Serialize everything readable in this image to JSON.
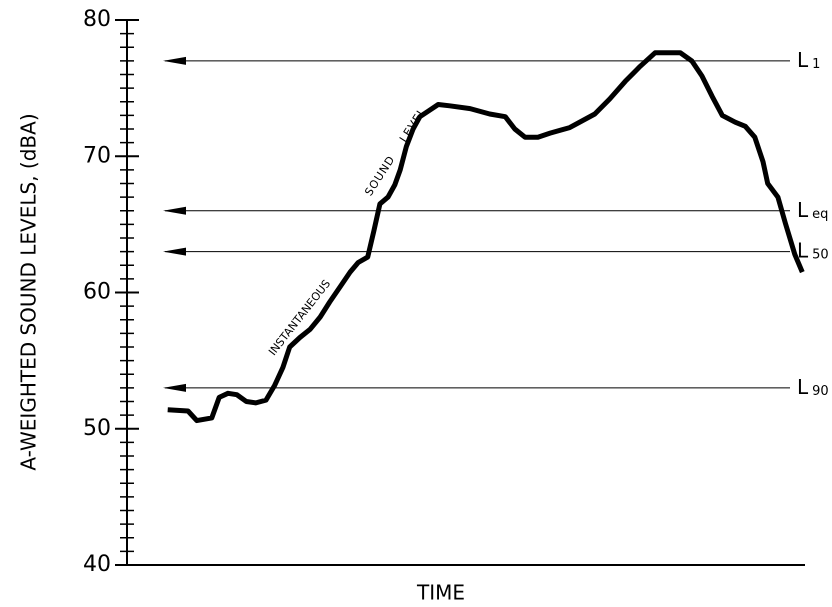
{
  "chart_data": {
    "type": "line",
    "y_label": "A-WEIGHTED SOUND LEVELS, (dBA)",
    "x_label": "TIME",
    "annotations": [
      "INSTANTANEOUS",
      "SOUND LEVEL"
    ],
    "ylim": [
      40,
      80
    ],
    "yticks": [
      40,
      50,
      60,
      70,
      80
    ],
    "yminorticks": [
      41,
      42,
      43,
      44,
      45,
      46,
      47,
      48,
      49,
      51,
      52,
      53,
      54,
      55,
      56,
      57,
      58,
      59,
      61,
      62,
      63,
      64,
      65,
      66,
      67,
      68,
      69,
      71,
      72,
      73,
      74,
      75,
      76,
      77,
      78,
      79
    ],
    "xlim": [
      0,
      100
    ],
    "x": [
      6.0,
      9.0,
      10.3,
      12.5,
      13.6,
      14.9,
      16.2,
      17.6,
      19.0,
      20.5,
      21.8,
      23.0,
      24.0,
      25.5,
      27.0,
      28.5,
      29.9,
      31.4,
      32.9,
      34.1,
      35.5,
      36.4,
      37.3,
      38.5,
      39.5,
      40.3,
      41.2,
      42.2,
      43.2,
      44.4,
      45.9,
      47.6,
      50.6,
      53.5,
      55.8,
      57.2,
      58.7,
      60.6,
      62.4,
      65.3,
      69.0,
      71.2,
      73.5,
      75.7,
      77.9,
      81.6,
      83.3,
      84.8,
      86.3,
      87.8,
      89.7,
      91.2,
      92.6,
      93.8,
      94.5,
      96.0,
      97.1,
      98.5,
      99.6
    ],
    "values": [
      51.4,
      51.3,
      50.6,
      50.8,
      52.3,
      52.6,
      52.5,
      52.0,
      51.9,
      52.1,
      53.2,
      54.5,
      56.0,
      56.7,
      57.3,
      58.2,
      59.3,
      60.4,
      61.5,
      62.2,
      62.6,
      64.5,
      66.5,
      67.0,
      67.9,
      69.0,
      70.7,
      72.0,
      72.9,
      73.3,
      73.8,
      73.7,
      73.5,
      73.1,
      72.9,
      72.0,
      71.4,
      71.4,
      71.7,
      72.1,
      73.1,
      74.2,
      75.5,
      76.6,
      77.6,
      77.6,
      77.0,
      75.9,
      74.4,
      73.0,
      72.5,
      72.2,
      71.4,
      69.6,
      68.0,
      67.0,
      65.1,
      62.8,
      61.5
    ],
    "color": "#000000",
    "reference_lines": [
      {
        "label": "L",
        "sub": "1",
        "value": 77
      },
      {
        "label": "L",
        "sub": "eq",
        "value": 66
      },
      {
        "label": "L",
        "sub": "50",
        "value": 63
      },
      {
        "label": "L",
        "sub": "90",
        "value": 53
      }
    ]
  }
}
